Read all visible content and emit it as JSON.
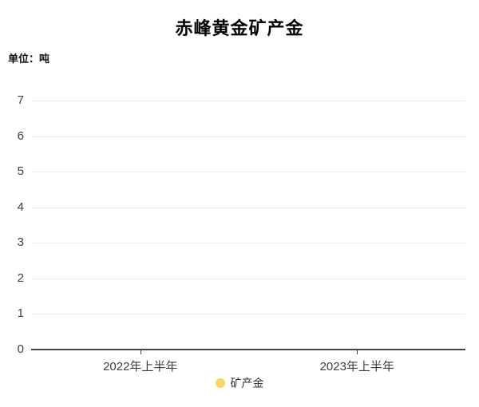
{
  "chart": {
    "title": "赤峰黄金矿产金",
    "unit_label": "单位：吨",
    "legend": [
      {
        "label": "矿产金",
        "color": "#FBD665",
        "marker": "circle"
      }
    ],
    "colors": {
      "axis_line": "#444444",
      "gridline": "#ececec",
      "tick_text": "#3d3d3d",
      "series_yellow": "#FBD665"
    }
  },
  "chart_data": {
    "type": "line",
    "title": "赤峰黄金矿产金",
    "unit": "吨",
    "categories": [
      "2022年上半年",
      "2023年上半年"
    ],
    "series": [
      {
        "name": "矿产金",
        "color": "#FBD665",
        "values": [
          null,
          null
        ]
      }
    ],
    "ylim": [
      0,
      7
    ],
    "yticks": [
      0,
      1,
      2,
      3,
      4,
      5,
      6,
      7
    ],
    "grid": true,
    "legend_position": "bottom"
  }
}
